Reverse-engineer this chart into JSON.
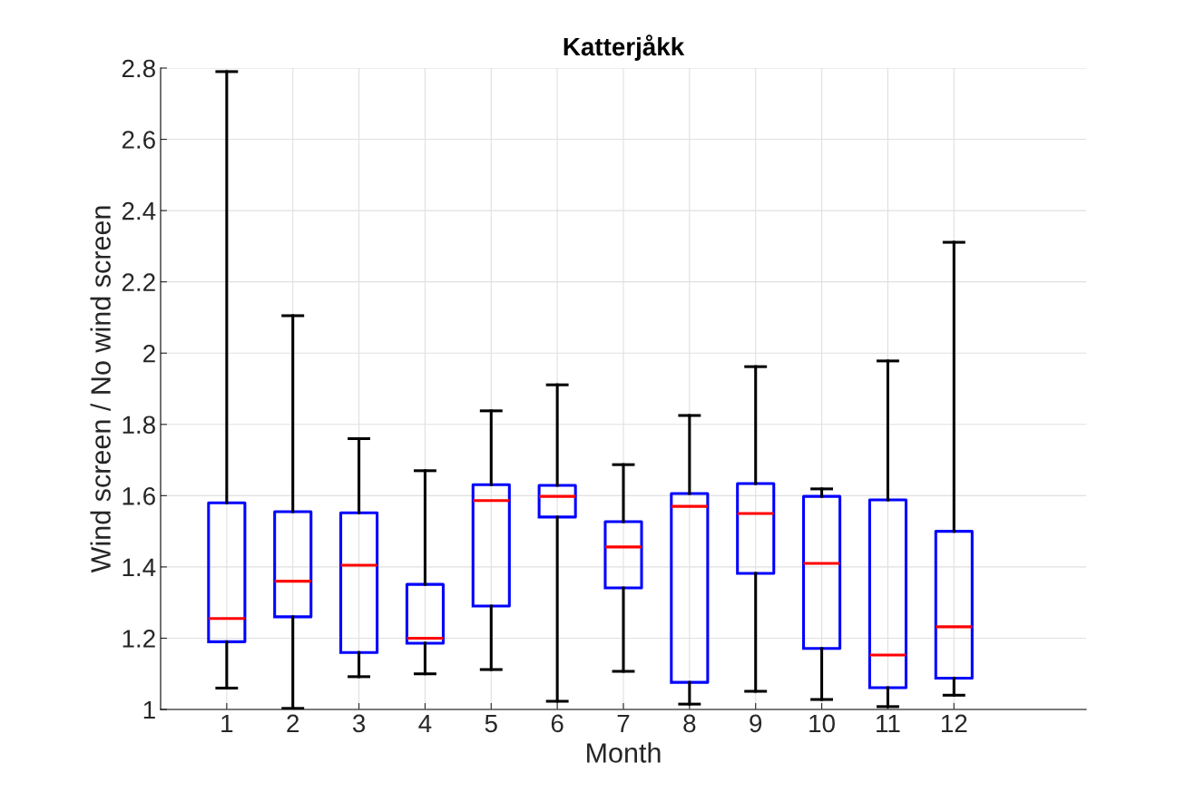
{
  "chart_data": {
    "type": "box",
    "title": "Katterjåkk",
    "xlabel": "Month",
    "ylabel": "Wind screen / No wind screen",
    "x": [
      1,
      2,
      3,
      4,
      5,
      6,
      7,
      8,
      9,
      10,
      11,
      12
    ],
    "xlim": [
      0,
      14
    ],
    "xticks": [
      1,
      2,
      3,
      4,
      5,
      6,
      7,
      8,
      9,
      10,
      11,
      12
    ],
    "ylim": [
      1,
      2.8
    ],
    "yticks": [
      1,
      1.2,
      1.4,
      1.6,
      1.8,
      2,
      2.2,
      2.4,
      2.6,
      2.8
    ],
    "grid": true,
    "series": [
      {
        "color": "#0000ff",
        "boxes": [
          {
            "low": 1.06,
            "q1": 1.19,
            "median": 1.255,
            "q3": 1.58,
            "high": 2.79
          },
          {
            "low": 1.003,
            "q1": 1.26,
            "median": 1.36,
            "q3": 1.555,
            "high": 2.105
          },
          {
            "low": 1.092,
            "q1": 1.16,
            "median": 1.405,
            "q3": 1.552,
            "high": 1.76
          },
          {
            "low": 1.1,
            "q1": 1.186,
            "median": 1.2,
            "q3": 1.351,
            "high": 1.67
          },
          {
            "low": 1.112,
            "q1": 1.29,
            "median": 1.586,
            "q3": 1.631,
            "high": 1.838
          },
          {
            "low": 1.023,
            "q1": 1.54,
            "median": 1.598,
            "q3": 1.629,
            "high": 1.911
          },
          {
            "low": 1.107,
            "q1": 1.341,
            "median": 1.456,
            "q3": 1.527,
            "high": 1.687
          },
          {
            "low": 1.015,
            "q1": 1.076,
            "median": 1.57,
            "q3": 1.606,
            "high": 1.825
          },
          {
            "low": 1.051,
            "q1": 1.382,
            "median": 1.55,
            "q3": 1.634,
            "high": 1.962
          },
          {
            "low": 1.028,
            "q1": 1.171,
            "median": 1.41,
            "q3": 1.598,
            "high": 1.619
          },
          {
            "low": 1.008,
            "q1": 1.061,
            "median": 1.153,
            "q3": 1.588,
            "high": 1.978
          },
          {
            "low": 1.04,
            "q1": 1.088,
            "median": 1.232,
            "q3": 1.5,
            "high": 2.311
          }
        ]
      }
    ]
  }
}
